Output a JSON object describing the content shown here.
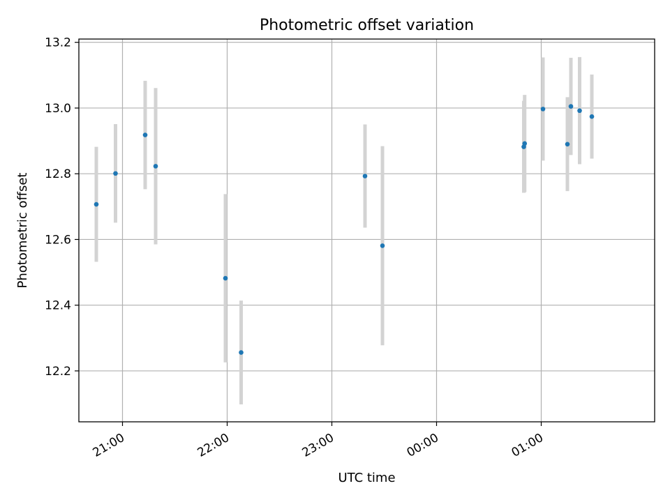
{
  "chart_data": {
    "type": "scatter",
    "title": "Photometric offset variation",
    "xlabel": "UTC time",
    "ylabel": "Photometric offset",
    "x_tick_labels": [
      "21:00",
      "22:00",
      "23:00",
      "00:00",
      "01:00"
    ],
    "x_tick_times": [
      "21:00",
      "22:00",
      "23:00",
      "00:00",
      "01:00"
    ],
    "y_ticks": [
      12.2,
      12.4,
      12.6,
      12.8,
      13.0,
      13.2
    ],
    "y_tick_labels": [
      "12.2",
      "12.4",
      "12.6",
      "12.8",
      "13.0",
      "13.2"
    ],
    "xlim": [
      "20:35",
      "02:05"
    ],
    "ylim": [
      12.045,
      13.21
    ],
    "grid": true,
    "colors": {
      "point": "#1f77b4",
      "errorbar": "#d3d3d3",
      "grid": "#b0b0b0"
    },
    "points": [
      {
        "time": "20:45",
        "y": 12.707,
        "yerr": 0.175
      },
      {
        "time": "20:56",
        "y": 12.801,
        "yerr": 0.15
      },
      {
        "time": "21:13",
        "y": 12.918,
        "yerr": 0.165
      },
      {
        "time": "21:19",
        "y": 12.823,
        "yerr": 0.238
      },
      {
        "time": "21:59",
        "y": 12.482,
        "yerr": 0.256
      },
      {
        "time": "22:08",
        "y": 12.256,
        "yerr": 0.158
      },
      {
        "time": "23:19",
        "y": 12.793,
        "yerr": 0.157
      },
      {
        "time": "23:29",
        "y": 12.581,
        "yerr": 0.303
      },
      {
        "time": "00:50",
        "y": 12.882,
        "yerr": 0.14
      },
      {
        "time": "00:50.5",
        "y": 12.892,
        "yerr": 0.148
      },
      {
        "time": "01:01",
        "y": 12.997,
        "yerr": 0.157
      },
      {
        "time": "01:15",
        "y": 12.89,
        "yerr": 0.143
      },
      {
        "time": "01:17",
        "y": 13.005,
        "yerr": 0.148
      },
      {
        "time": "01:22",
        "y": 12.992,
        "yerr": 0.163
      },
      {
        "time": "01:29",
        "y": 12.974,
        "yerr": 0.128
      }
    ]
  }
}
